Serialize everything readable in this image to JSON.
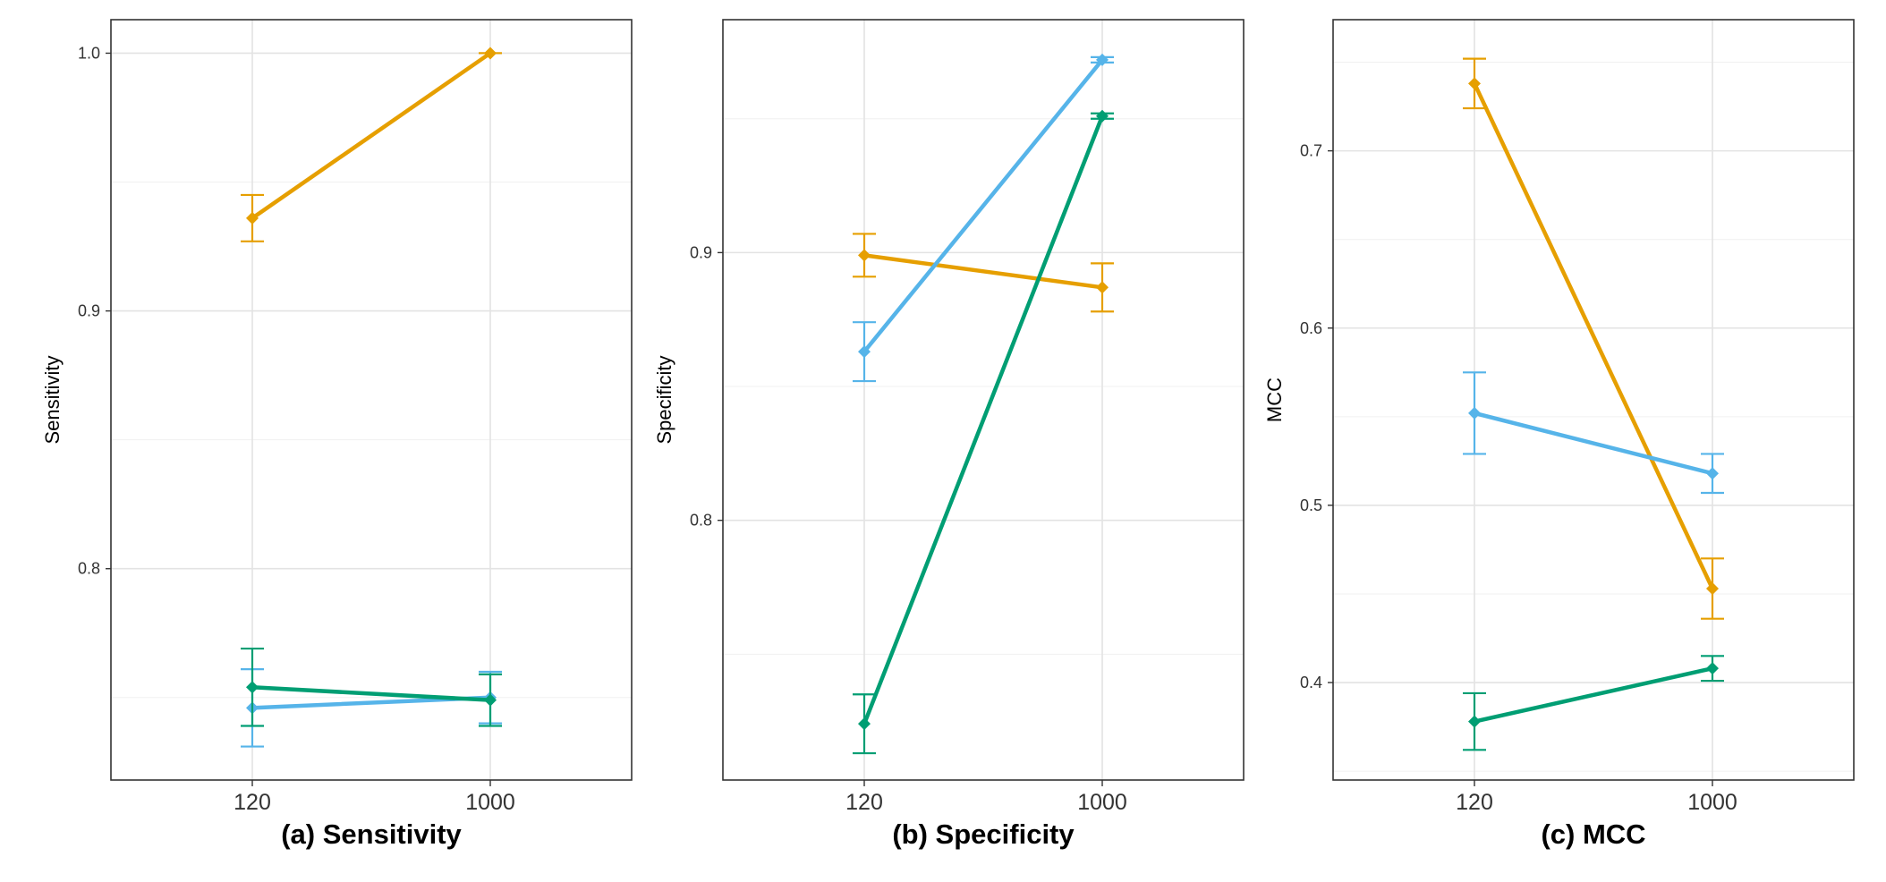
{
  "chart_data": [
    {
      "type": "line",
      "caption": "(a) Sensitivity",
      "ylabel": "Sensitivity",
      "x": [
        "120",
        "1000"
      ],
      "ylim": [
        0.718,
        1.013
      ],
      "yticks": [
        0.8,
        0.9,
        1.0
      ],
      "ytick_labels": [
        "0.8",
        "0.9",
        "1.0"
      ],
      "grid": true,
      "legend": "none",
      "series": [
        {
          "color": "#E69F00",
          "values": [
            0.936,
            1.0
          ],
          "err": [
            0.009,
            0.0
          ]
        },
        {
          "color": "#56B4E9",
          "values": [
            0.746,
            0.75
          ],
          "err": [
            0.015,
            0.01
          ]
        },
        {
          "color": "#009E73",
          "values": [
            0.754,
            0.749
          ],
          "err": [
            0.015,
            0.01
          ]
        }
      ]
    },
    {
      "type": "line",
      "caption": "(b) Specificity",
      "ylabel": "Specificity",
      "x": [
        "120",
        "1000"
      ],
      "ylim": [
        0.703,
        0.987
      ],
      "yticks": [
        0.8,
        0.9
      ],
      "ytick_labels": [
        "0.8",
        "0.9"
      ],
      "grid": true,
      "legend": "none",
      "series": [
        {
          "color": "#E69F00",
          "values": [
            0.899,
            0.887
          ],
          "err": [
            0.008,
            0.009
          ]
        },
        {
          "color": "#56B4E9",
          "values": [
            0.863,
            0.972
          ],
          "err": [
            0.011,
            0.001
          ]
        },
        {
          "color": "#009E73",
          "values": [
            0.724,
            0.951
          ],
          "err": [
            0.011,
            0.001
          ]
        }
      ]
    },
    {
      "type": "line",
      "caption": "(c) MCC",
      "ylabel": "MCC",
      "x": [
        "120",
        "1000"
      ],
      "ylim": [
        0.345,
        0.774
      ],
      "yticks": [
        0.4,
        0.5,
        0.6,
        0.7
      ],
      "ytick_labels": [
        "0.4",
        "0.5",
        "0.6",
        "0.7"
      ],
      "grid": true,
      "legend": "none",
      "series": [
        {
          "color": "#E69F00",
          "values": [
            0.738,
            0.453
          ],
          "err": [
            0.014,
            0.017
          ]
        },
        {
          "color": "#56B4E9",
          "values": [
            0.552,
            0.518
          ],
          "err": [
            0.023,
            0.011
          ]
        },
        {
          "color": "#009E73",
          "values": [
            0.378,
            0.408
          ],
          "err": [
            0.016,
            0.007
          ]
        }
      ]
    }
  ]
}
